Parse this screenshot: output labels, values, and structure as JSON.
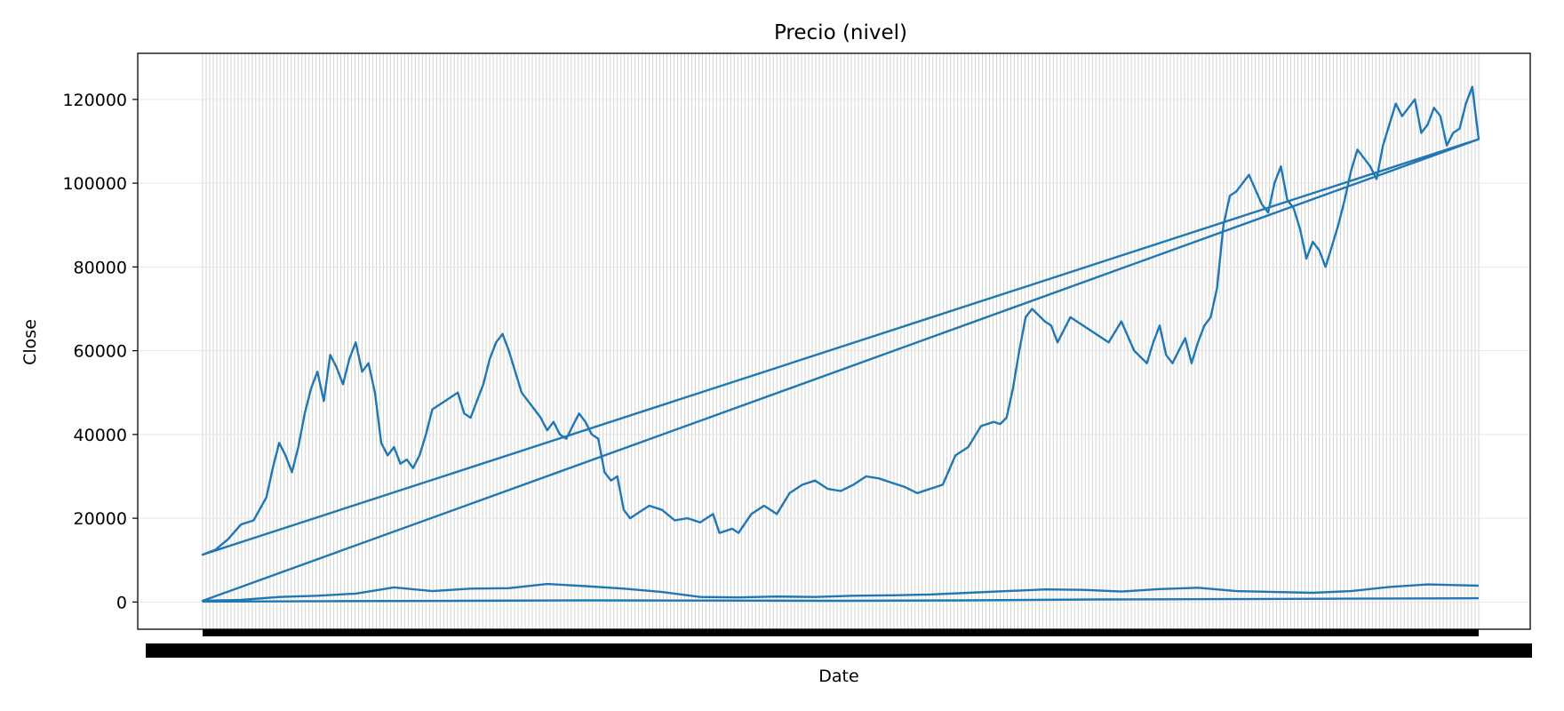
{
  "chart_data": {
    "type": "line",
    "title": "Precio (nivel)",
    "xlabel": "Date",
    "ylabel": "Close",
    "ylim": [
      -6500,
      131000
    ],
    "yticks": [
      0,
      20000,
      40000,
      60000,
      80000,
      100000,
      120000
    ],
    "ytick_labels": [
      "0",
      "20000",
      "40000",
      "60000",
      "80000",
      "100000",
      "120000"
    ],
    "grid": true,
    "x_tick_labels_note": "dense overlapping date tick labels (illegible)",
    "colors": {
      "series": "#1f77b4",
      "x_gridlines": "#b0b0b0",
      "y_gridlines": "#e6e6e6"
    },
    "series": [
      {
        "x_fraction_note": "x positions given as fraction of the date axis span",
        "x": [
          0.0,
          0.01,
          0.02,
          0.03,
          0.04,
          0.05,
          0.055,
          0.06,
          0.065,
          0.07,
          0.075,
          0.08,
          0.085,
          0.09,
          0.095,
          0.1,
          0.105,
          0.11,
          0.115,
          0.12,
          0.125,
          0.13,
          0.135,
          0.14,
          0.145,
          0.15,
          0.155,
          0.16,
          0.165,
          0.17,
          0.175,
          0.18,
          0.19,
          0.2,
          0.205,
          0.21,
          0.215,
          0.22,
          0.225,
          0.23,
          0.235,
          0.24,
          0.245,
          0.25,
          0.255,
          0.26,
          0.265,
          0.27,
          0.275,
          0.28,
          0.285,
          0.29,
          0.295,
          0.3,
          0.305,
          0.31,
          0.315,
          0.32,
          0.325,
          0.33,
          0.335,
          0.34,
          0.35,
          0.36,
          0.37,
          0.38,
          0.39,
          0.4,
          0.405,
          0.41,
          0.415,
          0.42,
          0.43,
          0.44,
          0.45,
          0.46,
          0.47,
          0.48,
          0.49,
          0.5,
          0.51,
          0.52,
          0.53,
          0.54,
          0.55,
          0.56,
          0.57,
          0.58,
          0.59,
          0.6,
          0.61,
          0.62,
          0.625,
          0.63,
          0.635,
          0.64,
          0.645,
          0.65,
          0.66,
          0.665,
          0.67,
          0.68,
          0.69,
          0.7,
          0.71,
          0.72,
          0.73,
          0.74,
          0.745,
          0.75,
          0.755,
          0.76,
          0.765,
          0.77,
          0.775,
          0.78,
          0.785,
          0.79,
          0.795,
          0.8,
          0.805,
          0.81,
          0.82,
          0.83,
          0.835,
          0.84,
          0.845,
          0.85,
          0.855,
          0.86,
          0.865,
          0.87,
          0.875,
          0.88,
          0.885,
          0.89,
          0.895,
          0.9,
          0.905,
          0.91,
          0.915,
          0.92,
          0.925,
          0.93,
          0.935,
          0.94,
          0.945,
          0.95,
          0.955,
          0.96,
          0.965,
          0.97,
          0.975,
          0.98,
          0.985,
          0.99,
          0.995,
          1.0,
          0.0,
          1.0,
          0.0,
          1.0
        ],
        "y": [
          11300,
          12500,
          15000,
          18500,
          19500,
          25000,
          32000,
          38000,
          35000,
          31000,
          37000,
          45000,
          51000,
          55000,
          48000,
          59000,
          56000,
          52000,
          58000,
          62000,
          55000,
          57000,
          50000,
          38000,
          35000,
          37000,
          33000,
          34000,
          32000,
          35000,
          40000,
          46000,
          48000,
          50000,
          45000,
          44000,
          48000,
          52000,
          58000,
          62000,
          64000,
          60000,
          55000,
          50000,
          48000,
          46000,
          44000,
          41000,
          43000,
          40000,
          39000,
          42000,
          45000,
          43000,
          40000,
          39000,
          31000,
          29000,
          30000,
          22000,
          20000,
          21000,
          23000,
          22000,
          19500,
          20000,
          19000,
          21000,
          16500,
          17000,
          17500,
          16500,
          21000,
          23000,
          21000,
          26000,
          28000,
          29000,
          27000,
          26500,
          28000,
          30000,
          29500,
          28500,
          27500,
          26000,
          27000,
          28000,
          35000,
          37000,
          42000,
          43000,
          42500,
          44000,
          51000,
          60000,
          68000,
          70000,
          67000,
          66000,
          62000,
          68000,
          66000,
          64000,
          62000,
          67000,
          60000,
          57000,
          62000,
          66000,
          59000,
          57000,
          60000,
          63000,
          57000,
          62000,
          66000,
          68000,
          75000,
          90000,
          97000,
          98000,
          102000,
          95000,
          93000,
          100000,
          104000,
          96000,
          94000,
          89000,
          82000,
          86000,
          84000,
          80000,
          85000,
          90000,
          96000,
          103000,
          108000,
          106000,
          104000,
          101000,
          109000,
          114000,
          119000,
          116000,
          118000,
          120000,
          112000,
          114000,
          118000,
          116000,
          109000,
          112000,
          113000,
          119000,
          123000,
          110500,
          11300,
          110500,
          300,
          110500
        ]
      },
      {
        "x": [
          0.0,
          0.03,
          0.06,
          0.09,
          0.12,
          0.15,
          0.18,
          0.21,
          0.24,
          0.27,
          0.3,
          0.33,
          0.36,
          0.39,
          0.42,
          0.45,
          0.48,
          0.51,
          0.54,
          0.57,
          0.6,
          0.63,
          0.66,
          0.69,
          0.72,
          0.75,
          0.78,
          0.81,
          0.84,
          0.87,
          0.9,
          0.93,
          0.96,
          1.0
        ],
        "y": [
          300,
          500,
          1200,
          1500,
          2000,
          3500,
          2600,
          3200,
          3300,
          4300,
          3800,
          3200,
          2400,
          1200,
          1100,
          1300,
          1200,
          1500,
          1600,
          1800,
          2200,
          2600,
          3000,
          2900,
          2500,
          3100,
          3400,
          2600,
          2400,
          2200,
          2600,
          3600,
          4200,
          3900
        ]
      },
      {
        "x": [
          0.0,
          0.05,
          0.1,
          0.2,
          0.3,
          0.4,
          0.5,
          0.6,
          0.7,
          0.8,
          0.9,
          1.0
        ],
        "y": [
          100,
          150,
          200,
          300,
          400,
          350,
          300,
          400,
          600,
          700,
          800,
          900
        ]
      }
    ]
  }
}
